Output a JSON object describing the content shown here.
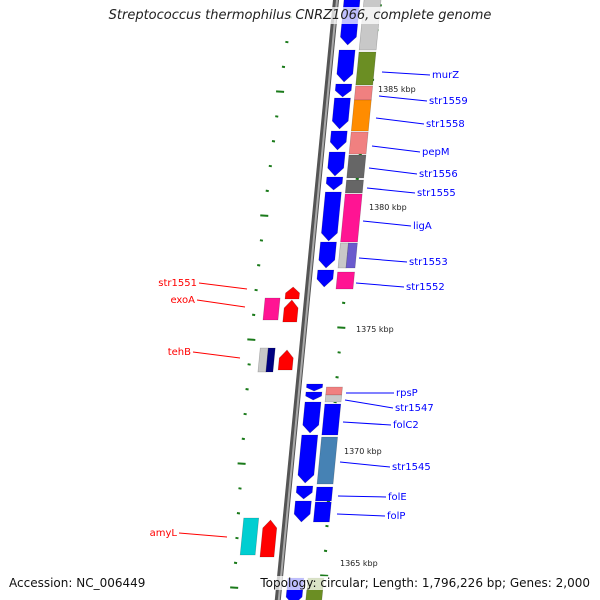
{
  "title": "Streptococcus thermophilus CNRZ1066, complete genome",
  "footer": {
    "accession": "Accession: NC_006449",
    "topology": "Topology: circular; Length: 1,796,226 bp; Genes: 2,000"
  },
  "scale_labels": [
    "1385 kbp",
    "1380 kbp",
    "1375 kbp",
    "1370 kbp",
    "1365 kbp"
  ],
  "forward_gene_labels": [
    "murZ",
    "str1559",
    "str1558",
    "pepM",
    "str1556",
    "str1555",
    "ligA",
    "str1553",
    "str1552",
    "rpsP",
    "str1547",
    "folC2",
    "str1545",
    "folE",
    "folP"
  ],
  "reverse_gene_labels": [
    "str1551",
    "exoA",
    "tehB",
    "amyL"
  ],
  "colors": {
    "forward": "#0000ff",
    "reverse": "#ff0000",
    "backbone": "#808080",
    "tick": "#1a7a1a",
    "lightgray": "#c8c8c8",
    "olive": "#6b8e23",
    "lightcoral": "#f08080",
    "orange": "#ff8c00",
    "dimgray": "#666666",
    "deeppink": "#ff1493",
    "slateblue": "#6a5acd",
    "navy": "#000080",
    "steelblue": "#4682b4",
    "turquoise": "#00ced1"
  }
}
